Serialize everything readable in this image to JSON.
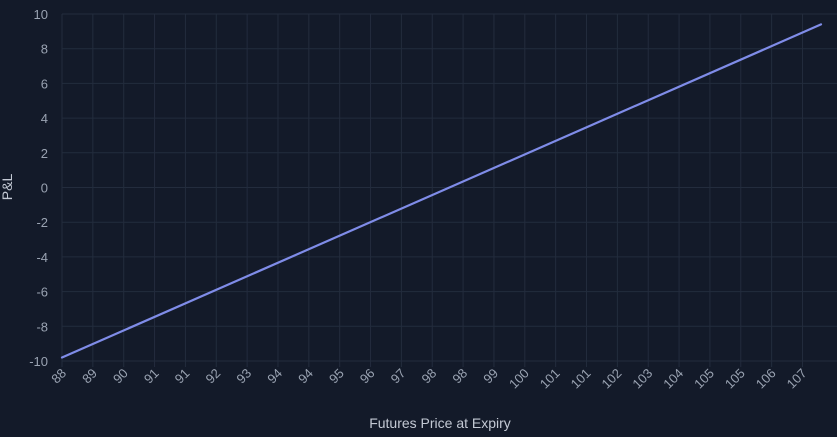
{
  "chart_data": {
    "type": "line",
    "title": "",
    "xlabel": "Futures Price at Expiry",
    "ylabel": "P&L",
    "xlim": [
      88,
      107.6
    ],
    "ylim": [
      -10,
      10
    ],
    "y_ticks": [
      10,
      8,
      6,
      4,
      2,
      0,
      -2,
      -4,
      -6,
      -8,
      -10
    ],
    "x_tick_labels": [
      "88",
      "89",
      "90",
      "91",
      "91",
      "92",
      "93",
      "94",
      "94",
      "95",
      "96",
      "97",
      "98",
      "98",
      "99",
      "100",
      "101",
      "101",
      "102",
      "103",
      "104",
      "105",
      "105",
      "106",
      "107"
    ],
    "series": [
      {
        "x": [
          88,
          107.6
        ],
        "y": [
          -9.8,
          9.4
        ]
      }
    ],
    "grid": true,
    "legend": "none",
    "colors": {
      "background": "#131a29",
      "line": "#7f8ce8",
      "grid": "#232c3d",
      "tick_text": "#9aa3b2",
      "axis_title": "#c3c9d4"
    }
  }
}
